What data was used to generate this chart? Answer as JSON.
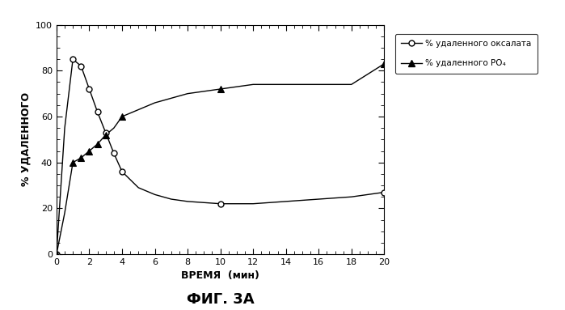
{
  "oxalate_x": [
    0,
    0.5,
    1,
    1.5,
    2,
    2.5,
    3,
    3.5,
    4,
    5,
    6,
    7,
    8,
    10,
    12,
    14,
    16,
    18,
    20
  ],
  "oxalate_y": [
    0,
    55,
    85,
    82,
    72,
    62,
    53,
    44,
    36,
    29,
    26,
    24,
    23,
    22,
    22,
    23,
    24,
    25,
    27
  ],
  "po4_x": [
    0,
    0.5,
    1,
    1.5,
    2,
    2.5,
    3,
    3.5,
    4,
    5,
    6,
    7,
    8,
    10,
    12,
    14,
    16,
    18,
    20
  ],
  "po4_y": [
    0,
    18,
    40,
    42,
    45,
    48,
    52,
    55,
    60,
    63,
    66,
    68,
    70,
    72,
    74,
    74,
    74,
    74,
    83
  ],
  "oxalate_marker_x": [
    0,
    1,
    1.5,
    2,
    2.5,
    3,
    3.5,
    4,
    10,
    20
  ],
  "oxalate_marker_y": [
    0,
    85,
    82,
    72,
    62,
    53,
    44,
    36,
    22,
    27
  ],
  "po4_marker_x": [
    0,
    1,
    1.5,
    2,
    2.5,
    3,
    4,
    10,
    20
  ],
  "po4_marker_y": [
    0,
    40,
    42,
    45,
    48,
    52,
    60,
    72,
    83
  ],
  "xlabel": "ВРЕМЯ  (мин)",
  "ylabel": "% УДАЛЕННОГО",
  "title": "ФИГ. 3А",
  "legend_oxalate": "% удаленного оксалата",
  "legend_po4": "% удаленного РО₄",
  "xlim": [
    0,
    20
  ],
  "ylim": [
    0,
    100
  ],
  "xticks": [
    0,
    2,
    4,
    6,
    8,
    10,
    12,
    14,
    16,
    18,
    20
  ],
  "yticks": [
    0,
    20,
    40,
    60,
    80,
    100
  ],
  "line_color": "#000000",
  "bg_color": "#ffffff"
}
